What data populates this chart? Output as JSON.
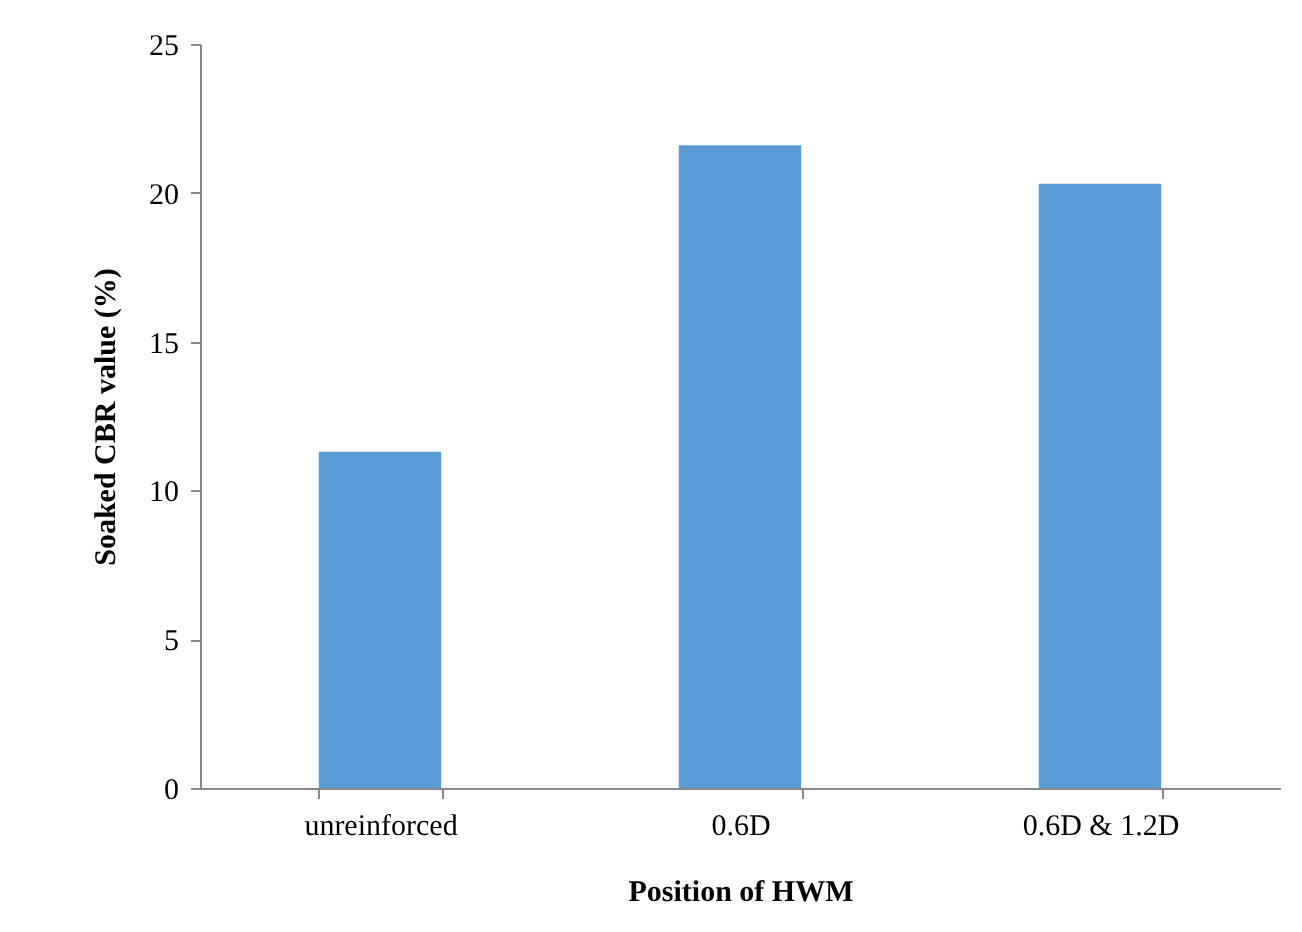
{
  "chart_data": {
    "type": "bar",
    "xlabel": "Position of HWM",
    "ylabel": "Soaked CBR value (%)",
    "categories": [
      "unreinforced",
      "0.6D",
      "0.6D & 1.2D"
    ],
    "values": [
      11.3,
      21.6,
      20.3
    ],
    "color": "#5b9bd5",
    "ylim": [
      0,
      25
    ],
    "yticks": [
      0,
      5,
      10,
      15,
      20,
      25
    ],
    "grid": false,
    "legend": false
  }
}
